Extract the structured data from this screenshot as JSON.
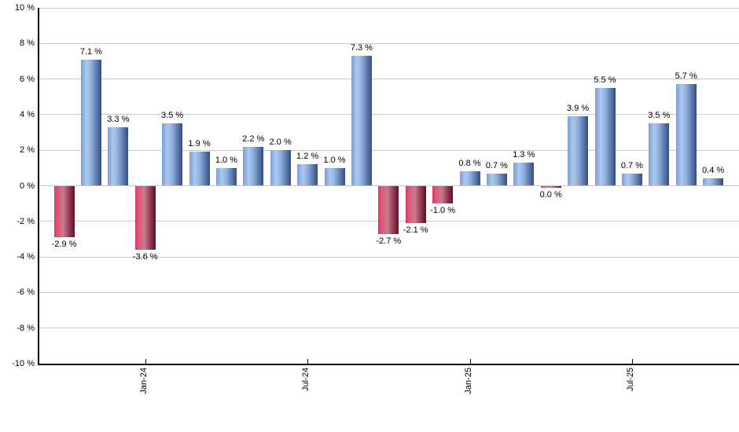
{
  "chart_data": {
    "type": "bar",
    "title": "",
    "xlabel": "",
    "ylabel": "",
    "ylim": [
      -10,
      10
    ],
    "y_tick_step": 2,
    "grid": true,
    "legend": false,
    "y_tick_labels": [
      "10 %",
      "8 %",
      "6 %",
      "4 %",
      "2 %",
      "0 %",
      "-2 %",
      "-4 %",
      "-6 %",
      "-8 %",
      "-10 %"
    ],
    "values": [
      -2.9,
      7.1,
      3.3,
      -3.6,
      3.5,
      1.9,
      1.0,
      2.2,
      2.0,
      1.2,
      1.0,
      7.3,
      -2.7,
      -2.1,
      -1.0,
      0.8,
      0.7,
      1.3,
      0.0,
      3.9,
      5.5,
      0.7,
      3.5,
      5.7,
      0.4
    ],
    "bar_labels": [
      "-2.9 %",
      "7.1 %",
      "3.3 %",
      "-3.6 %",
      "3.5 %",
      "1.9 %",
      "1.0 %",
      "2.2 %",
      "2.0 %",
      "1.2 %",
      "1.0 %",
      "7.3 %",
      "-2.7 %",
      "-2.1 %",
      "-1.0 %",
      "0.8 %",
      "0.7 %",
      "1.3 %",
      "0.0 %",
      "3.9 %",
      "5.5 %",
      "0.7 %",
      "3.5 %",
      "5.7 %",
      "0.4 %"
    ],
    "bar_colors": [
      "red",
      "blue",
      "blue",
      "red",
      "blue",
      "blue",
      "blue",
      "blue",
      "blue",
      "blue",
      "blue",
      "blue",
      "red",
      "red",
      "red",
      "blue",
      "blue",
      "blue",
      "red",
      "blue",
      "blue",
      "blue",
      "blue",
      "blue",
      "blue"
    ],
    "x_ticks": [
      {
        "bar_index": 3,
        "label": "Jan-24"
      },
      {
        "bar_index": 9,
        "label": "Jul-24"
      },
      {
        "bar_index": 15,
        "label": "Jan-25"
      },
      {
        "bar_index": 21,
        "label": "Jul-25"
      }
    ],
    "colors": {
      "background": "#ffffff",
      "gridline": "#c9c9c9",
      "axis": "#000000",
      "text": "#000000",
      "positive_gradient": [
        "#7e9ed2",
        "#abc8f0",
        "#8fb0dd",
        "#5a78ac",
        "#364d7c"
      ],
      "negative_gradient": [
        "#d93a60",
        "#e25277",
        "#c87b8f",
        "#93394f",
        "#5e1129"
      ]
    }
  }
}
